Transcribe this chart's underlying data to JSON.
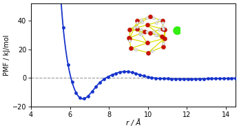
{
  "title": "",
  "xlabel": "r / Å",
  "ylabel": "PMF / kJ/mol",
  "xlim": [
    4,
    14.5
  ],
  "ylim": [
    -20,
    52
  ],
  "yticks": [
    -20,
    0,
    20,
    40
  ],
  "xticks": [
    4,
    6,
    8,
    10,
    12,
    14
  ],
  "line_color": "#1533cc",
  "marker_color": "#1533cc",
  "dashed_color": "#999999",
  "background_color": "#ffffff",
  "figsize": [
    3.47,
    1.89
  ],
  "dpi": 100,
  "cage_bond_color": "#dddd00",
  "cage_oxygen_color": "#cc1100",
  "cage_hydrogen_color": "#e8e8e8",
  "cage_methane_color": "#33ee11"
}
